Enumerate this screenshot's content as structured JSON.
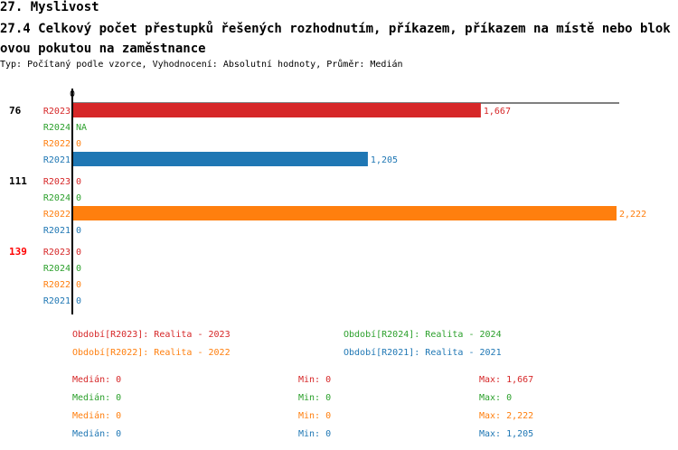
{
  "header": {
    "title": "27. Myslivost",
    "subtitle": "27.4 Celkový počet přestupků řešených rozhodnutím, příkazem, příkazem na místě nebo blokovou pokutou na zaměstnance",
    "meta": "Typ: Počítaný podle vzorce, Vyhodnocení: Absolutní hodnoty, Průměr: Medián"
  },
  "chart_data": {
    "type": "bar",
    "orientation": "horizontal",
    "axis_tick": "0",
    "xlim": [
      0,
      2222
    ],
    "series_colors": {
      "R2023": "#d62728",
      "R2024": "#2ca02c",
      "R2022": "#ff7f0e",
      "R2021": "#1f77b4"
    },
    "groups": [
      {
        "label": "76",
        "label_color": "#000000",
        "bars": [
          {
            "series": "R2023",
            "value": 1667,
            "text": "1,667"
          },
          {
            "series": "R2024",
            "value": null,
            "text": "NA"
          },
          {
            "series": "R2022",
            "value": 0,
            "text": "0"
          },
          {
            "series": "R2021",
            "value": 1205,
            "text": "1,205"
          }
        ]
      },
      {
        "label": "111",
        "label_color": "#000000",
        "bars": [
          {
            "series": "R2023",
            "value": 0,
            "text": "0"
          },
          {
            "series": "R2024",
            "value": 0,
            "text": "0"
          },
          {
            "series": "R2022",
            "value": 2222,
            "text": "2,222"
          },
          {
            "series": "R2021",
            "value": 0,
            "text": "0"
          }
        ]
      },
      {
        "label": "139",
        "label_color": "#ff0000",
        "bars": [
          {
            "series": "R2023",
            "value": 0,
            "text": "0"
          },
          {
            "series": "R2024",
            "value": 0,
            "text": "0"
          },
          {
            "series": "R2022",
            "value": 0,
            "text": "0"
          },
          {
            "series": "R2021",
            "value": 0,
            "text": "0"
          }
        ]
      }
    ],
    "legend": [
      {
        "series": "R2023",
        "text": "Období[R2023]: Realita - 2023"
      },
      {
        "series": "R2024",
        "text": "Období[R2024]: Realita - 2024"
      },
      {
        "series": "R2022",
        "text": "Období[R2022]: Realita - 2022"
      },
      {
        "series": "R2021",
        "text": "Období[R2021]: Realita - 2021"
      }
    ],
    "stats": [
      {
        "series": "R2023",
        "median": "Medián: 0",
        "min": "Min: 0",
        "max": "Max: 1,667"
      },
      {
        "series": "R2024",
        "median": "Medián: 0",
        "min": "Min: 0",
        "max": "Max: 0"
      },
      {
        "series": "R2022",
        "median": "Medián: 0",
        "min": "Min: 0",
        "max": "Max: 2,222"
      },
      {
        "series": "R2021",
        "median": "Medián: 0",
        "min": "Min: 0",
        "max": "Max: 1,205"
      }
    ]
  }
}
